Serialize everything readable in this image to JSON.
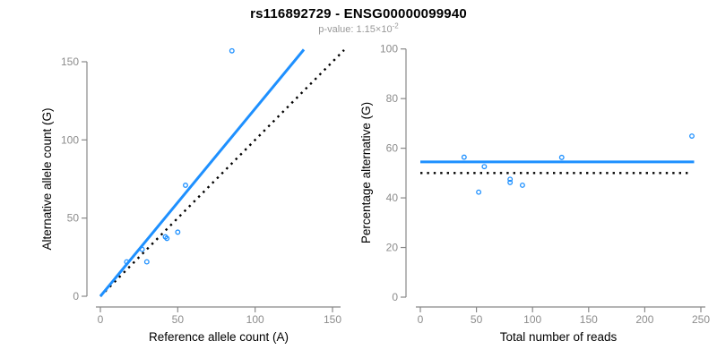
{
  "header": {
    "title": "rs116892729 - ENSG00000099940",
    "subtitle_prefix": "p-value: 1.15×10",
    "subtitle_exponent": "-2"
  },
  "colors": {
    "accent_blue": "#1E90FF",
    "identity_black": "#000000",
    "axis_gray": "#888888",
    "tick_label_gray": "#8C8C8C",
    "axis_title_black": "#000000",
    "subtitle_gray": "#999999",
    "background": "#FFFFFF"
  },
  "chart_data": [
    {
      "type": "scatter",
      "panel": "left",
      "xlabel": "Reference allele count (A)",
      "ylabel": "Alternative allele count (G)",
      "xlim": [
        0,
        157
      ],
      "ylim": [
        0,
        158
      ],
      "xticks": [
        0,
        50,
        100,
        150
      ],
      "yticks": [
        0,
        50,
        100,
        150
      ],
      "grid": false,
      "legend": null,
      "point_style": "open-circle",
      "points": [
        [
          17,
          22
        ],
        [
          27,
          30
        ],
        [
          30,
          22
        ],
        [
          42,
          38
        ],
        [
          43,
          37
        ],
        [
          50,
          41
        ],
        [
          55,
          71
        ],
        [
          85,
          157
        ]
      ],
      "lines": [
        {
          "name": "fit-line",
          "style": "solid",
          "color_key": "accent_blue",
          "x1": 0,
          "y1": 0,
          "x2": 131.5,
          "y2": 157.8
        },
        {
          "name": "identity-line",
          "style": "dotted",
          "color_key": "identity_black",
          "x1": 0,
          "y1": 0,
          "x2": 157.5,
          "y2": 157.5
        }
      ]
    },
    {
      "type": "scatter",
      "panel": "right",
      "xlabel": "Total number of reads",
      "ylabel": "Percentage alternative (G)",
      "xlim": [
        0,
        250
      ],
      "ylim": [
        0,
        100
      ],
      "xticks": [
        0,
        50,
        100,
        150,
        200,
        250
      ],
      "yticks": [
        0,
        20,
        40,
        60,
        80,
        100
      ],
      "grid": false,
      "legend": null,
      "point_style": "open-circle",
      "points": [
        [
          39,
          56.4
        ],
        [
          52,
          42.3
        ],
        [
          57,
          52.6
        ],
        [
          80,
          47.5
        ],
        [
          80,
          46.2
        ],
        [
          91,
          45.1
        ],
        [
          126,
          56.3
        ],
        [
          242,
          64.9
        ]
      ],
      "lines": [
        {
          "name": "mean-percentage-line",
          "style": "solid",
          "color_key": "accent_blue",
          "x1": 0,
          "y1": 54.5,
          "x2": 244,
          "y2": 54.5
        },
        {
          "name": "fifty-percent-line",
          "style": "dotted",
          "color_key": "identity_black",
          "x1": 0,
          "y1": 50,
          "x2": 239,
          "y2": 50
        }
      ]
    }
  ]
}
